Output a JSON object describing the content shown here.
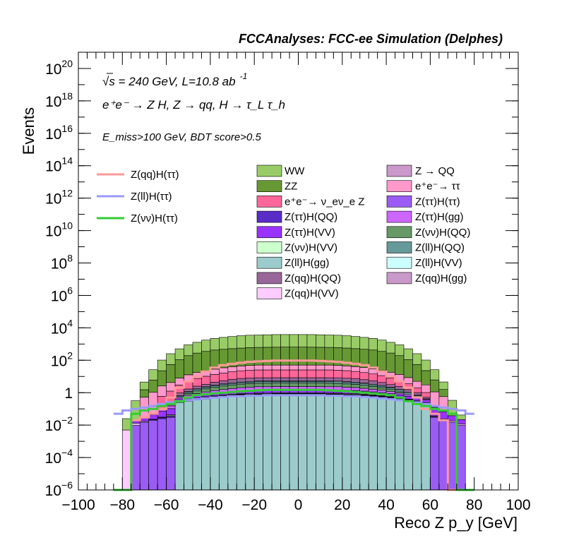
{
  "title": "FCCAnalyses: FCC-ee Simulation (Delphes)",
  "annotations": {
    "energy": "√s = 240 GeV, L=10.8 ab",
    "energy_sup": "-1",
    "process": "e⁺e⁻ → Z H, Z → qq, H → τ_L τ_h",
    "selection": "E_miss>100 GeV, BDT score>0.5"
  },
  "chart_data": {
    "type": "stacked-histogram",
    "xlabel": "Reco Z p_y [GeV]",
    "ylabel": "Events",
    "xlim": [
      -100,
      100
    ],
    "ylim": [
      1e-06,
      1e+21
    ],
    "log_y": true,
    "x_ticks": [
      "−100",
      "−80",
      "−60",
      "−40",
      "−20",
      "0",
      "20",
      "40",
      "60",
      "80",
      "100"
    ],
    "y_ticks": [
      {
        "base": "10",
        "exp": "−6",
        "value": 1e-06
      },
      {
        "base": "10",
        "exp": "−4",
        "value": 0.0001
      },
      {
        "base": "10",
        "exp": "−2",
        "value": 0.01
      },
      {
        "base": "1",
        "exp": "",
        "value": 1
      },
      {
        "base": "10",
        "exp": "2",
        "value": 100.0
      },
      {
        "base": "10",
        "exp": "4",
        "value": 10000.0
      },
      {
        "base": "10",
        "exp": "6",
        "value": 1000000.0
      },
      {
        "base": "10",
        "exp": "8",
        "value": 100000000.0
      },
      {
        "base": "10",
        "exp": "10",
        "value": 10000000000.0
      },
      {
        "base": "10",
        "exp": "12",
        "value": 1000000000000.0
      },
      {
        "base": "10",
        "exp": "14",
        "value": 100000000000000.0
      },
      {
        "base": "10",
        "exp": "16",
        "value": 1e+16
      },
      {
        "base": "10",
        "exp": "18",
        "value": 1e+18
      },
      {
        "base": "10",
        "exp": "20",
        "value": 1e+20
      }
    ],
    "bin_edges": [
      -84,
      -80,
      -76,
      -72,
      -68,
      -64,
      -60,
      -56,
      -52,
      -48,
      -44,
      -40,
      -36,
      -32,
      -28,
      -24,
      -20,
      -16,
      -12,
      -8,
      -4,
      0,
      4,
      8,
      12,
      16,
      20,
      24,
      28,
      32,
      36,
      40,
      44,
      48,
      52,
      56,
      60,
      64,
      68,
      72,
      76,
      80
    ],
    "stack": [
      {
        "name": "Z(ll)H(gg)",
        "color": "#9ccbcb",
        "values": [
          0,
          0,
          0,
          0,
          0,
          0,
          0,
          0.25,
          0.3,
          0.35,
          0.4,
          0.45,
          0.5,
          0.55,
          0.6,
          0.6,
          0.65,
          0.65,
          0.7,
          0.7,
          0.7,
          0.7,
          0.7,
          0.7,
          0.65,
          0.65,
          0.6,
          0.6,
          0.55,
          0.5,
          0.45,
          0.4,
          0.35,
          0.3,
          0.25,
          0.2,
          0,
          0,
          0,
          0,
          0
        ]
      },
      {
        "name": "Z(qq)H(gg)",
        "color": "#c99ac9",
        "values": [
          0,
          0,
          0,
          0,
          0,
          0,
          0,
          0,
          0,
          0,
          0,
          0,
          0,
          0,
          0.02,
          0,
          0,
          0,
          0,
          0,
          0,
          0,
          0,
          0,
          0,
          0,
          0,
          0,
          0,
          0,
          0,
          0,
          0,
          0,
          0,
          0,
          0,
          0,
          0,
          0,
          0
        ]
      },
      {
        "name": "Z(ττ)H(ττ)",
        "color": "#9a5cf5",
        "values": [
          0,
          0,
          0.01,
          0.015,
          0.02,
          0.025,
          0.03,
          0.04,
          0.05,
          0.06,
          0.07,
          0.08,
          0.09,
          0.1,
          0.1,
          0.1,
          0.12,
          0.12,
          0.12,
          0.12,
          0.12,
          0.12,
          0.12,
          0.12,
          0.12,
          0.12,
          0.1,
          0.1,
          0.1,
          0.09,
          0.08,
          0.07,
          0.06,
          0.05,
          0.04,
          0.035,
          0.03,
          0.02,
          0.015,
          0.01,
          0
        ]
      },
      {
        "name": "Z(ττ)H(QQ)",
        "color": "#5a2cc8",
        "values": [
          0,
          0,
          2e-06,
          5e-05,
          0.002,
          0.004,
          0.005,
          0.01,
          0.02,
          0.03,
          0.04,
          0.05,
          0.05,
          0.06,
          0.06,
          0.06,
          0.06,
          0.06,
          0.06,
          0.06,
          0.06,
          0.06,
          0.06,
          0.06,
          0.06,
          0.06,
          0.06,
          0.06,
          0.05,
          0.05,
          0.05,
          0.04,
          0.03,
          0.02,
          0.01,
          0.005,
          0.004,
          0.002,
          0,
          0,
          0
        ]
      },
      {
        "name": "Z(qq)H(VV)",
        "color": "#ffccff",
        "values": [
          0,
          0.005,
          0.003,
          0.002,
          0.001,
          0.002,
          0.003,
          0.004,
          0.005,
          0.01,
          0.015,
          0.02,
          0.03,
          0.03,
          0.03,
          0.03,
          0.03,
          0.03,
          0.03,
          0.03,
          0.03,
          0.03,
          0.03,
          0.03,
          0.03,
          0.03,
          0.03,
          0.03,
          0.03,
          0.03,
          0.03,
          0.02,
          0.015,
          0.01,
          0.005,
          0.004,
          0.003,
          0.002,
          0.003,
          0.002,
          0
        ]
      },
      {
        "name": "Z(νν)H(VV)",
        "color": "#ccffcc",
        "values": [
          0,
          0,
          0,
          0,
          0,
          0,
          0.005,
          0.01,
          0.02,
          0.03,
          0.04,
          0.05,
          0.06,
          0.07,
          0.08,
          0.08,
          0.08,
          0.08,
          0.08,
          0.08,
          0.08,
          0.08,
          0.08,
          0.08,
          0.08,
          0.08,
          0.08,
          0.08,
          0.07,
          0.06,
          0.05,
          0.04,
          0.03,
          0.02,
          0.01,
          0.005,
          0,
          0,
          0,
          0,
          0
        ]
      },
      {
        "name": "Z(ττ)H(VV)",
        "color": "#9933ff",
        "values": [
          0,
          0,
          0.005,
          0.01,
          0.02,
          0.04,
          0.06,
          0.1,
          0.15,
          0.2,
          0.25,
          0.3,
          0.35,
          0.4,
          0.45,
          0.5,
          0.5,
          0.5,
          0.5,
          0.5,
          0.5,
          0.5,
          0.5,
          0.5,
          0.5,
          0.5,
          0.5,
          0.5,
          0.45,
          0.4,
          0.35,
          0.3,
          0.25,
          0.2,
          0.15,
          0.1,
          0.06,
          0.04,
          0.02,
          0.01,
          0
        ]
      },
      {
        "name": "Z(ττ)H(gg)",
        "color": "#cc66ff",
        "values": [
          0,
          0,
          0,
          0,
          0.01,
          0.02,
          0.05,
          0.1,
          0.15,
          0.2,
          0.3,
          0.4,
          0.5,
          0.6,
          0.7,
          0.8,
          0.9,
          0.9,
          0.9,
          0.9,
          0.9,
          0.9,
          0.9,
          0.9,
          0.9,
          0.9,
          0.8,
          0.7,
          0.6,
          0.5,
          0.4,
          0.3,
          0.2,
          0.15,
          0.1,
          0.05,
          0.02,
          0.01,
          0,
          0,
          0
        ]
      },
      {
        "name": "Z(νν)H(QQ)",
        "color": "#669966",
        "values": [
          0,
          0,
          0,
          0,
          0,
          0,
          0,
          0,
          0.2,
          0.4,
          0.6,
          0.8,
          1,
          1.2,
          1.3,
          1.4,
          1.5,
          1.5,
          1.5,
          1.5,
          1.5,
          1.5,
          1.5,
          1.5,
          1.5,
          1.4,
          1.3,
          1.2,
          1,
          0.8,
          0.6,
          0.4,
          0.2,
          0,
          0,
          0,
          0,
          0,
          0,
          0,
          0
        ]
      },
      {
        "name": "Z(ll)H(QQ)",
        "color": "#669999",
        "values": [
          0,
          0,
          0,
          0,
          0,
          0,
          0,
          0.1,
          0.2,
          0.3,
          0.4,
          0.5,
          0.6,
          0.7,
          0.8,
          0.9,
          1,
          1,
          1,
          1,
          1,
          1,
          1,
          1,
          1,
          1,
          0.9,
          0.8,
          0.7,
          0.6,
          0.5,
          0.4,
          0.3,
          0.2,
          0.1,
          0,
          0,
          0,
          0,
          0,
          0
        ]
      },
      {
        "name": "Z(ll)H(VV)",
        "color": "#ccffff",
        "values": [
          0,
          0,
          0,
          0,
          0,
          0,
          0,
          0.05,
          0.1,
          0.15,
          0.2,
          0.25,
          0.3,
          0.35,
          0.4,
          0.45,
          0.5,
          0.5,
          0.5,
          0.5,
          0.5,
          0.5,
          0.5,
          0.5,
          0.5,
          0.5,
          0.45,
          0.4,
          0.35,
          0.3,
          0.25,
          0.2,
          0.15,
          0.1,
          0.05,
          0.02,
          0.01,
          0,
          0,
          0,
          0
        ]
      },
      {
        "name": "Z(qq)H(QQ)",
        "color": "#996699",
        "values": [
          0,
          0,
          0,
          0,
          0,
          0,
          0.1,
          0.3,
          0.5,
          0.8,
          1,
          1.5,
          2,
          2.5,
          3,
          3,
          3,
          3,
          3,
          3,
          3,
          3,
          3,
          3,
          3,
          3,
          3,
          3,
          2.5,
          2,
          1.5,
          1,
          0.8,
          0.5,
          0.3,
          0.1,
          0,
          0,
          0,
          0,
          0
        ]
      },
      {
        "name": "e⁺e⁻→ ν_eν_e Z",
        "color": "#ff6699",
        "values": [
          0,
          0,
          0,
          0,
          0,
          0.5,
          1,
          2,
          3,
          5,
          7,
          9,
          11,
          13,
          15,
          16,
          17,
          17,
          17,
          17,
          17,
          17,
          17,
          17,
          17,
          16,
          15,
          13,
          11,
          9,
          7,
          5,
          3,
          2,
          1,
          0.5,
          0,
          0,
          0,
          0,
          0
        ]
      },
      {
        "name": "e⁺e⁻→ ττ",
        "color": "#ff99cc",
        "values": [
          0,
          0,
          0,
          0.5,
          1,
          2,
          3,
          5,
          8,
          10,
          12,
          15,
          18,
          20,
          22,
          24,
          25,
          25,
          25,
          25,
          25,
          25,
          25,
          25,
          25,
          24,
          22,
          20,
          18,
          15,
          12,
          10,
          8,
          5,
          3,
          2,
          1,
          0.5,
          0,
          0,
          0
        ]
      },
      {
        "name": "Z → QQ",
        "color": "#cc99cc",
        "values": [
          0,
          0,
          0,
          0,
          0,
          0,
          0,
          0,
          0,
          0,
          0,
          0,
          0,
          0,
          0,
          0,
          0,
          0,
          0,
          0,
          0,
          0,
          0,
          0,
          0,
          0,
          0,
          0,
          0,
          0,
          0,
          0,
          0,
          0,
          0,
          0,
          0,
          0,
          0,
          0,
          0
        ]
      },
      {
        "name": "ZZ",
        "color": "#669933",
        "values": [
          0,
          0,
          0,
          1,
          5,
          20,
          50,
          100,
          180,
          260,
          330,
          400,
          440,
          480,
          520,
          550,
          570,
          580,
          590,
          600,
          600,
          600,
          590,
          580,
          570,
          550,
          520,
          480,
          440,
          400,
          330,
          260,
          180,
          100,
          50,
          20,
          5,
          1,
          0,
          0,
          0
        ]
      },
      {
        "name": "WW",
        "color": "#99cc66",
        "values": [
          1e-06,
          0.02,
          0.3,
          3,
          20,
          80,
          200,
          400,
          700,
          1000,
          1400,
          1800,
          2100,
          2400,
          2700,
          2900,
          3000,
          3100,
          3200,
          3200,
          3200,
          3200,
          3200,
          3100,
          3000,
          2900,
          2700,
          2400,
          2100,
          1800,
          1400,
          1000,
          700,
          400,
          200,
          80,
          20,
          3,
          0.3,
          0.02,
          1e-06
        ]
      }
    ],
    "signal": [
      {
        "name": "Z(qq)H(ττ)",
        "color": "#ff9999",
        "values": [
          0,
          0,
          0.02,
          0.03,
          0.05,
          0.1,
          0.5,
          2,
          5,
          10,
          20,
          35,
          50,
          60,
          70,
          80,
          85,
          90,
          95,
          95,
          95,
          95,
          95,
          90,
          85,
          80,
          70,
          60,
          50,
          35,
          20,
          10,
          5,
          2,
          0.5,
          0.1,
          0.05,
          0.02,
          0,
          0,
          0
        ]
      },
      {
        "name": "Z(ll)H(ττ)",
        "color": "#9999ff",
        "values": [
          0.05,
          0.08,
          0.1,
          0.12,
          0.15,
          0.2,
          0.25,
          0.3,
          0.35,
          0.4,
          0.45,
          0.5,
          0.55,
          0.6,
          0.6,
          0.65,
          0.65,
          0.7,
          0.7,
          0.7,
          0.7,
          0.7,
          0.7,
          0.7,
          0.65,
          0.65,
          0.6,
          0.6,
          0.55,
          0.5,
          0.45,
          0.4,
          0.35,
          0.3,
          0.25,
          0.2,
          0.15,
          0.12,
          0.1,
          0.08,
          0.05
        ]
      },
      {
        "name": "Z(νν)H(ττ)",
        "color": "#33cc33",
        "values": [
          0,
          0,
          0.05,
          0.08,
          0.1,
          0.15,
          0.2,
          0.3,
          0.5,
          0.7,
          0.8,
          0.9,
          1,
          1.1,
          1.2,
          1.3,
          1.4,
          1.5,
          1.5,
          1.5,
          1.5,
          1.5,
          1.5,
          1.5,
          1.4,
          1.3,
          1.2,
          1.1,
          1,
          0.9,
          0.8,
          0.7,
          0.5,
          0.3,
          0.2,
          0.15,
          0.1,
          0.08,
          0.05,
          0,
          0
        ]
      }
    ]
  },
  "legend": {
    "signal": [
      {
        "label": "Z(qq)H(ττ)",
        "color": "#ff9999"
      },
      {
        "label": "Z(ll)H(ττ)",
        "color": "#9999ff"
      },
      {
        "label": "Z(νν)H(ττ)",
        "color": "#33cc33"
      }
    ],
    "col1": [
      {
        "label": "WW",
        "color": "#99cc66"
      },
      {
        "label": "ZZ",
        "color": "#669933"
      },
      {
        "label": "e⁺e⁻→ ν_eν_e Z",
        "color": "#ff6699"
      },
      {
        "label": "Z(ττ)H(QQ)",
        "color": "#5a2cc8"
      },
      {
        "label": "Z(ττ)H(VV)",
        "color": "#9933ff"
      },
      {
        "label": "Z(νν)H(VV)",
        "color": "#ccffcc"
      },
      {
        "label": "Z(ll)H(gg)",
        "color": "#9ccbcb"
      },
      {
        "label": "Z(qq)H(QQ)",
        "color": "#996699"
      },
      {
        "label": "Z(qq)H(VV)",
        "color": "#ffccff"
      }
    ],
    "col2": [
      {
        "label": "Z → QQ",
        "color": "#cc99cc"
      },
      {
        "label": "e⁺e⁻→ ττ",
        "color": "#ff99cc"
      },
      {
        "label": "Z(ττ)H(ττ)",
        "color": "#9a5cf5"
      },
      {
        "label": "Z(ττ)H(gg)",
        "color": "#cc66ff"
      },
      {
        "label": "Z(νν)H(QQ)",
        "color": "#669966"
      },
      {
        "label": "Z(ll)H(QQ)",
        "color": "#669999"
      },
      {
        "label": "Z(ll)H(VV)",
        "color": "#ccffff"
      },
      {
        "label": "Z(qq)H(gg)",
        "color": "#c99ac9"
      }
    ]
  }
}
